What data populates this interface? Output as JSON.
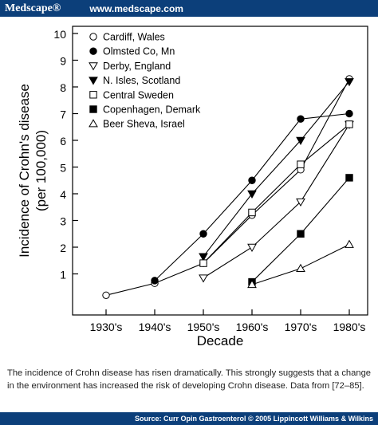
{
  "header": {
    "brand": "Medscape®",
    "url": "www.medscape.com"
  },
  "chart_data": {
    "type": "line",
    "xlabel": "Decade",
    "ylabel_line1": "Incidence of Crohn's disease",
    "ylabel_line2": "(per 100,000)",
    "categories": [
      "1930's",
      "1940's",
      "1950's",
      "1960's",
      "1970's",
      "1980's"
    ],
    "ylim": [
      0,
      10
    ],
    "yticks": [
      1,
      2,
      3,
      4,
      5,
      6,
      7,
      8,
      9,
      10
    ],
    "grid": false,
    "legend_position": "top-left",
    "series": [
      {
        "name": "Cardiff, Wales",
        "marker": "circle-open",
        "values": [
          0.2,
          0.65,
          1.4,
          3.2,
          4.9,
          8.3
        ]
      },
      {
        "name": "Olmsted Co, Mn",
        "marker": "circle-filled",
        "values": [
          null,
          0.75,
          2.5,
          4.5,
          6.8,
          7.0
        ]
      },
      {
        "name": "Derby, England",
        "marker": "triangle-down-open",
        "values": [
          null,
          null,
          0.85,
          2.0,
          3.7,
          6.6
        ]
      },
      {
        "name": "N. Isles, Scotland",
        "marker": "triangle-down-filled",
        "values": [
          null,
          null,
          1.65,
          4.0,
          6.0,
          8.2
        ]
      },
      {
        "name": "Central Sweden",
        "marker": "square-open",
        "values": [
          null,
          null,
          1.4,
          3.3,
          5.1,
          6.6
        ]
      },
      {
        "name": "Copenhagen, Demark",
        "marker": "square-filled",
        "values": [
          null,
          null,
          null,
          0.7,
          2.5,
          4.6
        ]
      },
      {
        "name": "Beer Sheva, Israel",
        "marker": "triangle-up-open",
        "values": [
          null,
          null,
          null,
          0.6,
          1.2,
          2.1
        ]
      }
    ]
  },
  "caption": "The incidence of Crohn disease has risen dramatically. This strongly suggests that a change in the environment has increased the risk of developing Crohn disease. Data from [72–85].",
  "footer": "Source: Curr Opin Gastroenterol © 2005 Lippincott Williams & Wilkins"
}
